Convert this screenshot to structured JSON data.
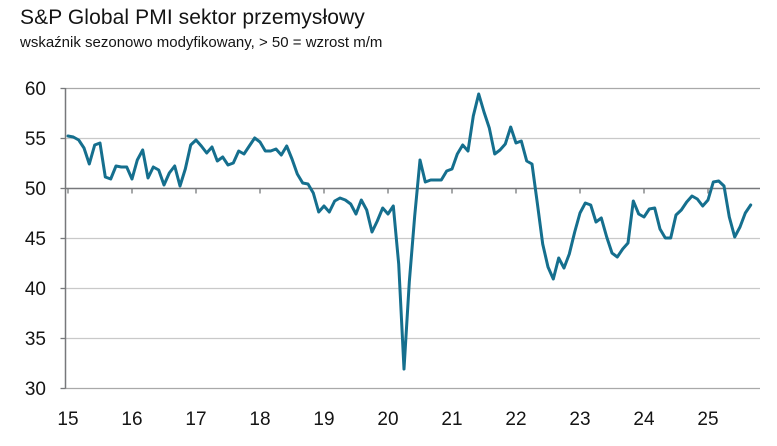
{
  "header": {
    "title": "S&P Global PMI sektor przemysłowy",
    "subtitle": "wskaźnik sezonowo modyfikowany, > 50 = wzrost m/m"
  },
  "chart_data": {
    "type": "line",
    "title": "S&P Global PMI sektor przemysłowy",
    "subtitle": "wskaźnik sezonowo modyfikowany, > 50 = wzrost m/m",
    "frequency": "monthly",
    "x_start": "2015-01",
    "x_end": "2025-09",
    "x_tick_labels": [
      "15",
      "16",
      "17",
      "18",
      "19",
      "20",
      "21",
      "22",
      "23",
      "24",
      "25"
    ],
    "y_ticks": [
      30,
      35,
      40,
      45,
      50,
      55,
      60
    ],
    "ylim": [
      30,
      60
    ],
    "reference_line": 50,
    "grid": true,
    "legend": "none",
    "line_color": "#156f8e",
    "axis_color": "#77787b",
    "grid_color": "#c9c9c9",
    "edge_grid_color": "#a9a9a9",
    "text_color": "#141414",
    "series": [
      {
        "name": "PMI sektor przemysłowy",
        "values": [
          55.2,
          55.1,
          54.8,
          54.0,
          52.4,
          54.3,
          54.5,
          51.1,
          50.9,
          52.2,
          52.1,
          52.1,
          50.9,
          52.8,
          53.8,
          51.0,
          52.1,
          51.8,
          50.3,
          51.5,
          52.2,
          50.2,
          51.9,
          54.3,
          54.8,
          54.2,
          53.5,
          54.1,
          52.7,
          53.1,
          52.3,
          52.5,
          53.7,
          53.4,
          54.2,
          55.0,
          54.6,
          53.7,
          53.7,
          53.9,
          53.3,
          54.2,
          52.9,
          51.4,
          50.5,
          50.4,
          49.5,
          47.6,
          48.2,
          47.6,
          48.7,
          49.0,
          48.8,
          48.4,
          47.4,
          48.8,
          47.8,
          45.6,
          46.7,
          48.0,
          47.4,
          48.2,
          42.4,
          31.9,
          40.6,
          47.2,
          52.8,
          50.6,
          50.8,
          50.8,
          50.8,
          51.7,
          51.9,
          53.4,
          54.3,
          53.7,
          57.2,
          59.4,
          57.6,
          56.0,
          53.4,
          53.8,
          54.4,
          56.1,
          54.5,
          54.7,
          52.7,
          52.4,
          48.5,
          44.4,
          42.1,
          40.9,
          43.0,
          42.0,
          43.4,
          45.6,
          47.5,
          48.5,
          48.3,
          46.6,
          47.0,
          45.1,
          43.5,
          43.1,
          43.9,
          44.5,
          48.7,
          47.4,
          47.1,
          47.9,
          48.0,
          45.9,
          45.0,
          45.0,
          47.3,
          47.8,
          48.6,
          49.2,
          48.9,
          48.2,
          48.8,
          50.6,
          50.7,
          50.2,
          47.1,
          45.1,
          46.1,
          47.5,
          48.3
        ]
      }
    ]
  }
}
